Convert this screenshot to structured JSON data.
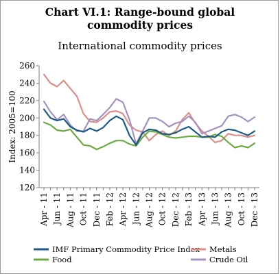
{
  "title_line1": "Chart VI.1: Range-bound global",
  "title_line2": "commodity prices",
  "subtitle": "International commodity prices",
  "chart_data": {
    "type": "line",
    "ylabel": "Index: 2005=100",
    "ylim": [
      120,
      260
    ],
    "yticks": [
      120,
      140,
      160,
      180,
      200,
      220,
      240,
      260
    ],
    "grid": false,
    "legend_position": "bottom",
    "x": [
      "Apr-11",
      "May-11",
      "Jun-11",
      "Jul-11",
      "Aug-11",
      "Sep-11",
      "Oct-11",
      "Nov-11",
      "Dec-11",
      "Jan-12",
      "Feb-12",
      "Mar-12",
      "Apr-12",
      "May-12",
      "Jun-12",
      "Jul-12",
      "Aug-12",
      "Sep-12",
      "Oct-12",
      "Nov-12",
      "Dec-12",
      "Jan-13",
      "Feb-13",
      "Mar-13",
      "Apr-13",
      "May-13",
      "Jun-13",
      "Jul-13",
      "Aug-13",
      "Sep-13",
      "Oct-13",
      "Nov-13",
      "Dec-13"
    ],
    "xtick_labels": [
      "Apr - 11",
      "Jun - 11",
      "Aug - 11",
      "Oct - 11",
      "Dec - 11",
      "Feb - 12",
      "Apr - 12",
      "Jun - 12",
      "Aug - 12",
      "Oct - 12",
      "Dec - 12",
      "Feb - 13",
      "Apr - 13",
      "Jun - 13",
      "Aug - 13",
      "Oct - 13",
      "Dec - 13"
    ],
    "series": [
      {
        "name": "IMF Primary Commodity Price Index",
        "color": "#1c5a86",
        "values": [
          210,
          200,
          197,
          199,
          190,
          186,
          184,
          188,
          185,
          189,
          197,
          202,
          198,
          180,
          169,
          183,
          187,
          186,
          182,
          181,
          183,
          187,
          190,
          184,
          178,
          179,
          178,
          184,
          187,
          186,
          183,
          180,
          185
        ]
      },
      {
        "name": "Metals",
        "color": "#dc8e8a",
        "values": [
          250,
          240,
          236,
          243,
          234,
          225,
          205,
          196,
          195,
          200,
          207,
          208,
          205,
          192,
          186,
          184,
          174,
          181,
          185,
          180,
          185,
          198,
          206,
          194,
          185,
          179,
          172,
          174,
          182,
          180,
          180,
          178,
          180
        ]
      },
      {
        "name": "Food",
        "color": "#6aaa3f",
        "values": [
          195,
          192,
          186,
          185,
          187,
          178,
          169,
          168,
          164,
          167,
          171,
          174,
          174,
          170,
          168,
          178,
          185,
          184,
          181,
          178,
          177,
          178,
          179,
          179,
          178,
          178,
          181,
          179,
          172,
          166,
          168,
          166,
          171
        ]
      },
      {
        "name": "Crude Oil",
        "color": "#a491c2",
        "values": [
          219,
          207,
          198,
          204,
          192,
          185,
          185,
          199,
          197,
          204,
          212,
          222,
          218,
          198,
          170,
          185,
          200,
          200,
          196,
          190,
          194,
          196,
          202,
          195,
          182,
          185,
          188,
          191,
          202,
          204,
          201,
          196,
          201
        ]
      }
    ]
  }
}
